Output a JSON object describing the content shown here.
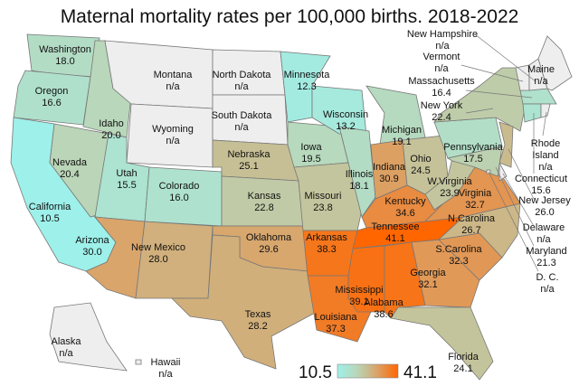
{
  "title": "Maternal mortality rates per 100,000 births. 2018-2022",
  "legend": {
    "min": "10.5",
    "max": "41.1",
    "min_color": "#9ef0ea",
    "max_color": "#ff6600"
  },
  "no_data_color": "#eeeeee",
  "states": [
    {
      "name": "Washington",
      "value": "18.0"
    },
    {
      "name": "Oregon",
      "value": "16.6"
    },
    {
      "name": "California",
      "value": "10.5"
    },
    {
      "name": "Nevada",
      "value": "20.4"
    },
    {
      "name": "Idaho",
      "value": "20.0"
    },
    {
      "name": "Montana",
      "value": "n/a"
    },
    {
      "name": "Wyoming",
      "value": "n/a"
    },
    {
      "name": "Utah",
      "value": "15.5"
    },
    {
      "name": "Colorado",
      "value": "16.0"
    },
    {
      "name": "Arizona",
      "value": "30.0"
    },
    {
      "name": "New Mexico",
      "value": "28.0"
    },
    {
      "name": "North Dakota",
      "value": "n/a"
    },
    {
      "name": "South Dakota",
      "value": "n/a"
    },
    {
      "name": "Nebraska",
      "value": "25.1"
    },
    {
      "name": "Kansas",
      "value": "22.8"
    },
    {
      "name": "Oklahoma",
      "value": "29.6"
    },
    {
      "name": "Texas",
      "value": "28.2"
    },
    {
      "name": "Minnesota",
      "value": "12.3"
    },
    {
      "name": "Iowa",
      "value": "19.5"
    },
    {
      "name": "Missouri",
      "value": "23.8"
    },
    {
      "name": "Arkansas",
      "value": "38.3"
    },
    {
      "name": "Louisiana",
      "value": "37.3"
    },
    {
      "name": "Wisconsin",
      "value": "13.2"
    },
    {
      "name": "Illinois",
      "value": "18.1"
    },
    {
      "name": "Michigan",
      "value": "19.1"
    },
    {
      "name": "Indiana",
      "value": "30.9"
    },
    {
      "name": "Ohio",
      "value": "24.5"
    },
    {
      "name": "Kentucky",
      "value": "34.6"
    },
    {
      "name": "Tennessee",
      "value": "41.1"
    },
    {
      "name": "Mississippi",
      "value": "39.1"
    },
    {
      "name": "Alabama",
      "value": "38.6"
    },
    {
      "name": "Georgia",
      "value": "32.1"
    },
    {
      "name": "Florida",
      "value": "24.1"
    },
    {
      "name": "S.Carolina",
      "value": "32.3"
    },
    {
      "name": "N.Carolina",
      "value": "26.7"
    },
    {
      "name": "Virginia",
      "value": "32.7"
    },
    {
      "name": "W.Virginia",
      "value": "23.9"
    },
    {
      "name": "Pennsylvania",
      "value": "17.5"
    },
    {
      "name": "New York",
      "value": "22.4"
    },
    {
      "name": "New Jersey",
      "value": "26.0"
    },
    {
      "name": "Delaware",
      "value": "n/a"
    },
    {
      "name": "Maryland",
      "value": "21.3"
    },
    {
      "name": "D. C.",
      "value": "n/a"
    },
    {
      "name": "Massachusetts",
      "value": "16.4"
    },
    {
      "name": "Connecticut",
      "value": "15.6"
    },
    {
      "name": "Rhode Island",
      "value": "n/a"
    },
    {
      "name": "Vermont",
      "value": "n/a"
    },
    {
      "name": "New Hampshire",
      "value": "n/a"
    },
    {
      "name": "Maine",
      "value": "n/a"
    },
    {
      "name": "Alaska",
      "value": "n/a"
    },
    {
      "name": "Hawaii",
      "value": "n/a"
    }
  ]
}
